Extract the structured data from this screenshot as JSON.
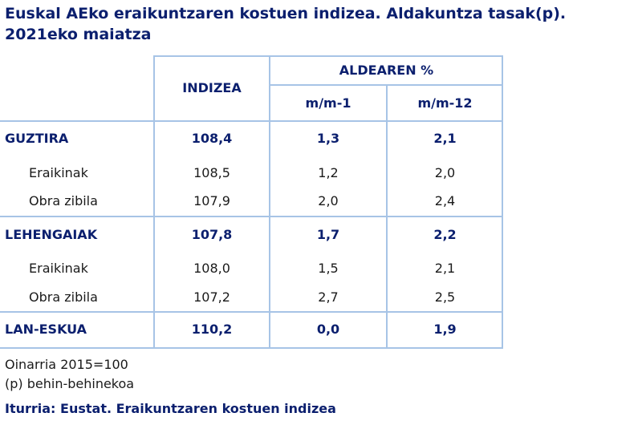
{
  "title": "Euskal AEko eraikuntzaren kostuen indizea. Aldakuntza tasak(p). 2021eko maiatza",
  "headers": {
    "index": "INDIZEA",
    "change_group": "ALDEAREN %",
    "mm1": "m/m-1",
    "mm12": "m/m-12"
  },
  "rows": [
    {
      "label": "GUZTIRA",
      "index": "108,4",
      "mm1": "1,3",
      "mm12": "2,1"
    },
    {
      "label": "Eraikinak",
      "index": "108,5",
      "mm1": "1,2",
      "mm12": "2,0"
    },
    {
      "label": "Obra zibila",
      "index": "107,9",
      "mm1": "2,0",
      "mm12": "2,4"
    },
    {
      "label": "LEHENGAIAK",
      "index": "107,8",
      "mm1": "1,7",
      "mm12": "2,2"
    },
    {
      "label": "Eraikinak",
      "index": "108,0",
      "mm1": "1,5",
      "mm12": "2,1"
    },
    {
      "label": "Obra zibila",
      "index": "107,2",
      "mm1": "2,7",
      "mm12": "2,5"
    },
    {
      "label": "LAN-ESKUA",
      "index": "110,2",
      "mm1": "0,0",
      "mm12": "1,9"
    }
  ],
  "notes": [
    "Oinarria 2015=100",
    "(p) behin-behinekoa"
  ],
  "source": "Iturria: Eustat. Eraikuntzaren kostuen indizea"
}
